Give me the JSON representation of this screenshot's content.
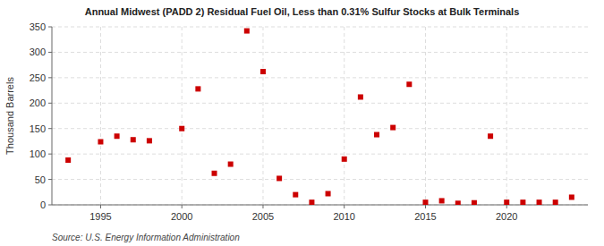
{
  "chart_data": {
    "type": "scatter",
    "title": "Annual Midwest (PADD 2) Residual Fuel Oil, Less than 0.31% Sulfur Stocks at Bulk Terminals",
    "ylabel": "Thousand Barrels",
    "annotations": [
      "Source: U.S. Energy Information Administration"
    ],
    "color": "#cc0000",
    "marker": "square",
    "grid": true,
    "xlim": [
      1992,
      2025
    ],
    "ylim": [
      0,
      350
    ],
    "xticks": [
      1995,
      2000,
      2005,
      2010,
      2015,
      2020
    ],
    "yticks": [
      0,
      50,
      100,
      150,
      200,
      250,
      300,
      350
    ],
    "x": [
      1993,
      1995,
      1996,
      1997,
      1998,
      2000,
      2001,
      2002,
      2003,
      2004,
      2005,
      2006,
      2007,
      2008,
      2009,
      2010,
      2011,
      2012,
      2013,
      2014,
      2015,
      2016,
      2017,
      2018,
      2019,
      2020,
      2021,
      2022,
      2023,
      2024
    ],
    "values": [
      88,
      124,
      135,
      128,
      126,
      150,
      228,
      62,
      80,
      342,
      262,
      52,
      20,
      5,
      22,
      90,
      212,
      138,
      152,
      237,
      5,
      8,
      3,
      4,
      135,
      5,
      5,
      5,
      5,
      15
    ]
  }
}
